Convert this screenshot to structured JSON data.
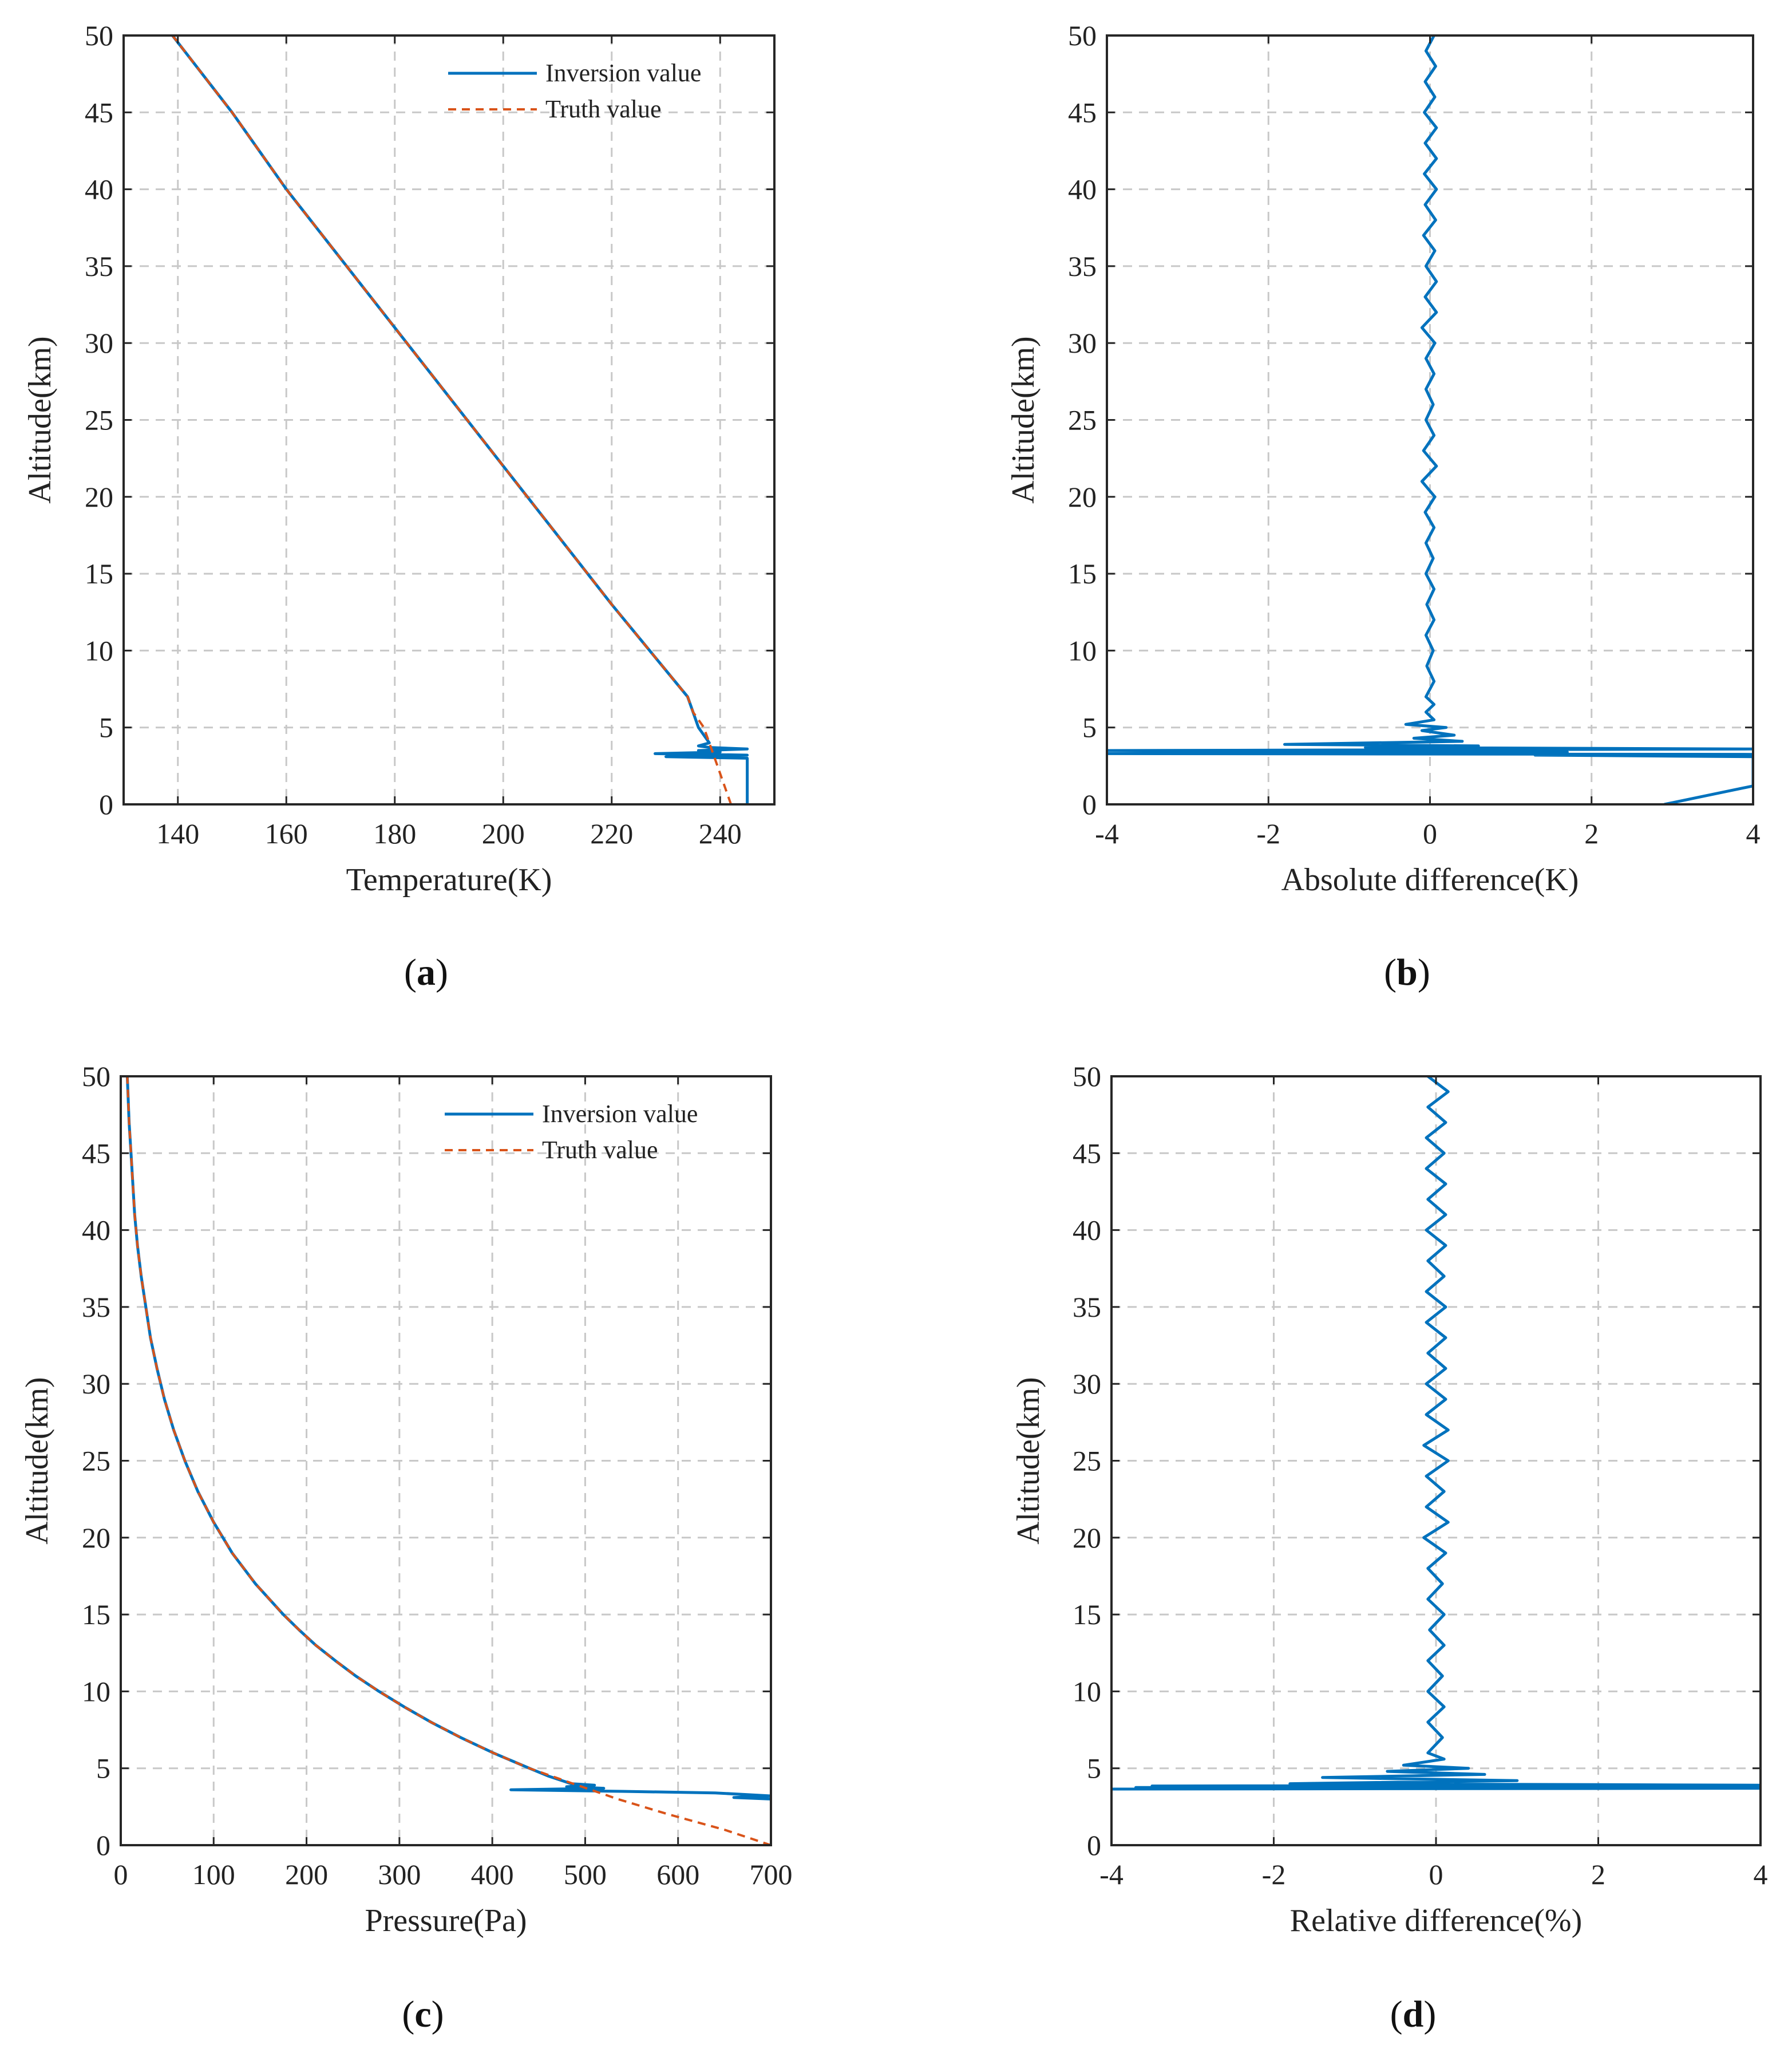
{
  "colors": {
    "inversion": "#0072BD",
    "truth": "#D95319"
  },
  "charts": [
    {
      "id": "a",
      "caption": "a",
      "xlabel": "Temperature(K)",
      "ylabel": "Altitude(km)",
      "xlim": [
        130,
        250
      ],
      "ylim": [
        0,
        50
      ],
      "xticks": [
        "140",
        "160",
        "180",
        "200",
        "220",
        "240"
      ],
      "yticks": [
        "0",
        "5",
        "10",
        "15",
        "20",
        "25",
        "30",
        "35",
        "40",
        "45",
        "50"
      ],
      "legend": {
        "entries": [
          "Inversion value",
          "Truth value"
        ],
        "position": "top-right"
      }
    },
    {
      "id": "b",
      "caption": "b",
      "xlabel": "Absolute difference(K)",
      "ylabel": "Altitude(km)",
      "xlim": [
        -4,
        4
      ],
      "ylim": [
        0,
        50
      ],
      "xticks": [
        "-4",
        "-2",
        "0",
        "2",
        "4"
      ],
      "yticks": [
        "0",
        "5",
        "10",
        "15",
        "20",
        "25",
        "30",
        "35",
        "40",
        "45",
        "50"
      ]
    },
    {
      "id": "c",
      "caption": "c",
      "xlabel": "Pressure(Pa)",
      "ylabel": "Altitude(km)",
      "xlim": [
        0,
        700
      ],
      "ylim": [
        0,
        50
      ],
      "xticks": [
        "0",
        "100",
        "200",
        "300",
        "400",
        "500",
        "600",
        "700"
      ],
      "yticks": [
        "0",
        "5",
        "10",
        "15",
        "20",
        "25",
        "30",
        "35",
        "40",
        "45",
        "50"
      ],
      "legend": {
        "entries": [
          "Inversion value",
          "Truth value"
        ],
        "position": "top-right"
      }
    },
    {
      "id": "d",
      "caption": "d",
      "xlabel": "Relative difference(%)",
      "ylabel": "Altitude(km)",
      "xlim": [
        -4,
        4
      ],
      "ylim": [
        0,
        50
      ],
      "xticks": [
        "-4",
        "-2",
        "0",
        "2",
        "4"
      ],
      "yticks": [
        "0",
        "5",
        "10",
        "15",
        "20",
        "25",
        "30",
        "35",
        "40",
        "45",
        "50"
      ]
    }
  ],
  "chart_data": [
    {
      "type": "line",
      "panel": "a",
      "series": [
        {
          "name": "Inversion value",
          "points": [
            [
              245,
              0
            ],
            [
              245,
              3.0
            ],
            [
              230,
              3.1
            ],
            [
              245,
              3.2
            ],
            [
              228,
              3.3
            ],
            [
              240,
              3.4
            ],
            [
              236,
              3.5
            ],
            [
              245,
              3.6
            ],
            [
              238,
              3.7
            ],
            [
              236,
              3.8
            ],
            [
              238,
              4.0
            ],
            [
              237,
              4.5
            ],
            [
              236,
              5
            ],
            [
              235,
              6
            ],
            [
              234,
              7
            ],
            [
              220,
              13
            ],
            [
              200,
              22
            ],
            [
              180,
              31
            ],
            [
              160,
              40
            ],
            [
              150,
              45
            ],
            [
              139,
              50
            ]
          ]
        },
        {
          "name": "Truth value",
          "points": [
            [
              242,
              0
            ],
            [
              241,
              1
            ],
            [
              240,
              2
            ],
            [
              239,
              3
            ],
            [
              238,
              4
            ],
            [
              237,
              5
            ],
            [
              235,
              6
            ],
            [
              234,
              7
            ],
            [
              220,
              13
            ],
            [
              200,
              22
            ],
            [
              180,
              31
            ],
            [
              160,
              40
            ],
            [
              150,
              45
            ],
            [
              139,
              50
            ]
          ]
        }
      ]
    },
    {
      "type": "line",
      "panel": "b",
      "series": [
        {
          "name": "Absolute difference",
          "points": [
            [
              2.9,
              0
            ],
            [
              4,
              1.2
            ],
            [
              4,
              3.1
            ],
            [
              1.3,
              3.2
            ],
            [
              4,
              3.25
            ],
            [
              -4,
              3.3
            ],
            [
              1.7,
              3.4
            ],
            [
              -4,
              3.5
            ],
            [
              4,
              3.6
            ],
            [
              -0.8,
              3.7
            ],
            [
              0.6,
              3.8
            ],
            [
              -1.8,
              3.9
            ],
            [
              0.4,
              4.1
            ],
            [
              -0.2,
              4.3
            ],
            [
              0.3,
              4.5
            ],
            [
              -0.1,
              4.8
            ],
            [
              0.2,
              5.0
            ],
            [
              -0.3,
              5.2
            ],
            [
              0.05,
              5.5
            ],
            [
              -0.05,
              6
            ],
            [
              0.05,
              6.5
            ],
            [
              -0.05,
              7
            ],
            [
              0.05,
              8
            ],
            [
              -0.04,
              9
            ],
            [
              0.04,
              10
            ],
            [
              -0.05,
              11
            ],
            [
              0.05,
              12
            ],
            [
              -0.04,
              13
            ],
            [
              0.05,
              14
            ],
            [
              -0.05,
              15
            ],
            [
              0.04,
              16
            ],
            [
              -0.05,
              17
            ],
            [
              0.05,
              18
            ],
            [
              -0.06,
              19
            ],
            [
              0.06,
              20
            ],
            [
              -0.1,
              21
            ],
            [
              0.08,
              22
            ],
            [
              -0.08,
              23
            ],
            [
              0.05,
              24
            ],
            [
              -0.05,
              25
            ],
            [
              0.04,
              26
            ],
            [
              -0.05,
              27
            ],
            [
              0.05,
              28
            ],
            [
              -0.05,
              29
            ],
            [
              0.06,
              30
            ],
            [
              -0.1,
              31
            ],
            [
              0.08,
              32
            ],
            [
              -0.06,
              33
            ],
            [
              0.08,
              34
            ],
            [
              -0.05,
              35
            ],
            [
              0.06,
              36
            ],
            [
              -0.08,
              37
            ],
            [
              0.07,
              38
            ],
            [
              -0.06,
              39
            ],
            [
              0.08,
              40
            ],
            [
              -0.07,
              41
            ],
            [
              0.08,
              42
            ],
            [
              -0.06,
              43
            ],
            [
              0.08,
              44
            ],
            [
              -0.07,
              45
            ],
            [
              0.06,
              46
            ],
            [
              -0.06,
              47
            ],
            [
              0.07,
              48
            ],
            [
              -0.05,
              49
            ],
            [
              0.05,
              50
            ]
          ]
        }
      ]
    },
    {
      "type": "line",
      "panel": "c",
      "series": [
        {
          "name": "Inversion value",
          "points": [
            [
              700,
              3.0
            ],
            [
              660,
              3.1
            ],
            [
              700,
              3.2
            ],
            [
              640,
              3.4
            ],
            [
              540,
              3.5
            ],
            [
              420,
              3.6
            ],
            [
              520,
              3.7
            ],
            [
              480,
              3.8
            ],
            [
              510,
              3.9
            ],
            [
              485,
              4.0
            ],
            [
              460,
              4.5
            ],
            [
              440,
              5
            ],
            [
              401,
              6
            ],
            [
              366,
              7
            ],
            [
              334,
              8
            ],
            [
              305,
              9
            ],
            [
              278,
              10
            ],
            [
              253,
              11
            ],
            [
              231,
              12
            ],
            [
              210,
              13
            ],
            [
              192,
              14
            ],
            [
              175,
              15
            ],
            [
              145,
              17
            ],
            [
              120,
              19
            ],
            [
              100,
              21
            ],
            [
              83,
              23
            ],
            [
              69,
              25
            ],
            [
              57,
              27
            ],
            [
              47,
              29
            ],
            [
              39,
              31
            ],
            [
              32,
              33
            ],
            [
              27,
              35
            ],
            [
              22,
              37
            ],
            [
              18,
              39
            ],
            [
              15,
              41
            ],
            [
              13,
              43
            ],
            [
              11,
              45
            ],
            [
              9,
              47
            ],
            [
              7,
              50
            ]
          ]
        },
        {
          "name": "Truth value",
          "points": [
            [
              700,
              0
            ],
            [
              650,
              1
            ],
            [
              590,
              2
            ],
            [
              535,
              3
            ],
            [
              487,
              4
            ],
            [
              440,
              5
            ],
            [
              401,
              6
            ],
            [
              366,
              7
            ],
            [
              334,
              8
            ],
            [
              305,
              9
            ],
            [
              278,
              10
            ],
            [
              253,
              11
            ],
            [
              231,
              12
            ],
            [
              210,
              13
            ],
            [
              192,
              14
            ],
            [
              175,
              15
            ],
            [
              145,
              17
            ],
            [
              120,
              19
            ],
            [
              100,
              21
            ],
            [
              83,
              23
            ],
            [
              69,
              25
            ],
            [
              57,
              27
            ],
            [
              47,
              29
            ],
            [
              39,
              31
            ],
            [
              32,
              33
            ],
            [
              27,
              35
            ],
            [
              22,
              37
            ],
            [
              18,
              39
            ],
            [
              15,
              41
            ],
            [
              13,
              43
            ],
            [
              11,
              45
            ],
            [
              9,
              47
            ],
            [
              7,
              50
            ]
          ]
        }
      ]
    },
    {
      "type": "line",
      "panel": "d",
      "series": [
        {
          "name": "Relative difference",
          "points": [
            [
              -4,
              3.65
            ],
            [
              4,
              3.7
            ],
            [
              -3.7,
              3.75
            ],
            [
              4,
              3.8
            ],
            [
              -3.5,
              3.85
            ],
            [
              4,
              3.9
            ],
            [
              -1.8,
              4.0
            ],
            [
              1.0,
              4.2
            ],
            [
              -1.4,
              4.4
            ],
            [
              0.6,
              4.6
            ],
            [
              -0.6,
              4.8
            ],
            [
              0.4,
              5.0
            ],
            [
              -0.4,
              5.2
            ],
            [
              0.1,
              5.6
            ],
            [
              -0.1,
              6
            ],
            [
              0.08,
              7
            ],
            [
              -0.1,
              8
            ],
            [
              0.1,
              9
            ],
            [
              -0.1,
              10
            ],
            [
              0.08,
              11
            ],
            [
              -0.1,
              12
            ],
            [
              0.1,
              13
            ],
            [
              -0.08,
              14
            ],
            [
              0.1,
              15
            ],
            [
              -0.1,
              16
            ],
            [
              0.08,
              17
            ],
            [
              -0.1,
              18
            ],
            [
              0.12,
              19
            ],
            [
              -0.15,
              20
            ],
            [
              0.15,
              21
            ],
            [
              -0.12,
              22
            ],
            [
              0.1,
              23
            ],
            [
              -0.12,
              24
            ],
            [
              0.15,
              25
            ],
            [
              -0.15,
              26
            ],
            [
              0.15,
              27
            ],
            [
              -0.12,
              28
            ],
            [
              0.12,
              29
            ],
            [
              -0.12,
              30
            ],
            [
              0.12,
              31
            ],
            [
              -0.1,
              32
            ],
            [
              0.12,
              33
            ],
            [
              -0.12,
              34
            ],
            [
              0.12,
              35
            ],
            [
              -0.12,
              36
            ],
            [
              0.1,
              37
            ],
            [
              -0.1,
              38
            ],
            [
              0.12,
              39
            ],
            [
              -0.12,
              40
            ],
            [
              0.12,
              41
            ],
            [
              -0.1,
              42
            ],
            [
              0.12,
              43
            ],
            [
              -0.12,
              44
            ],
            [
              0.1,
              45
            ],
            [
              -0.12,
              46
            ],
            [
              0.12,
              47
            ],
            [
              -0.1,
              48
            ],
            [
              0.15,
              49
            ],
            [
              -0.1,
              50
            ]
          ]
        }
      ]
    }
  ]
}
